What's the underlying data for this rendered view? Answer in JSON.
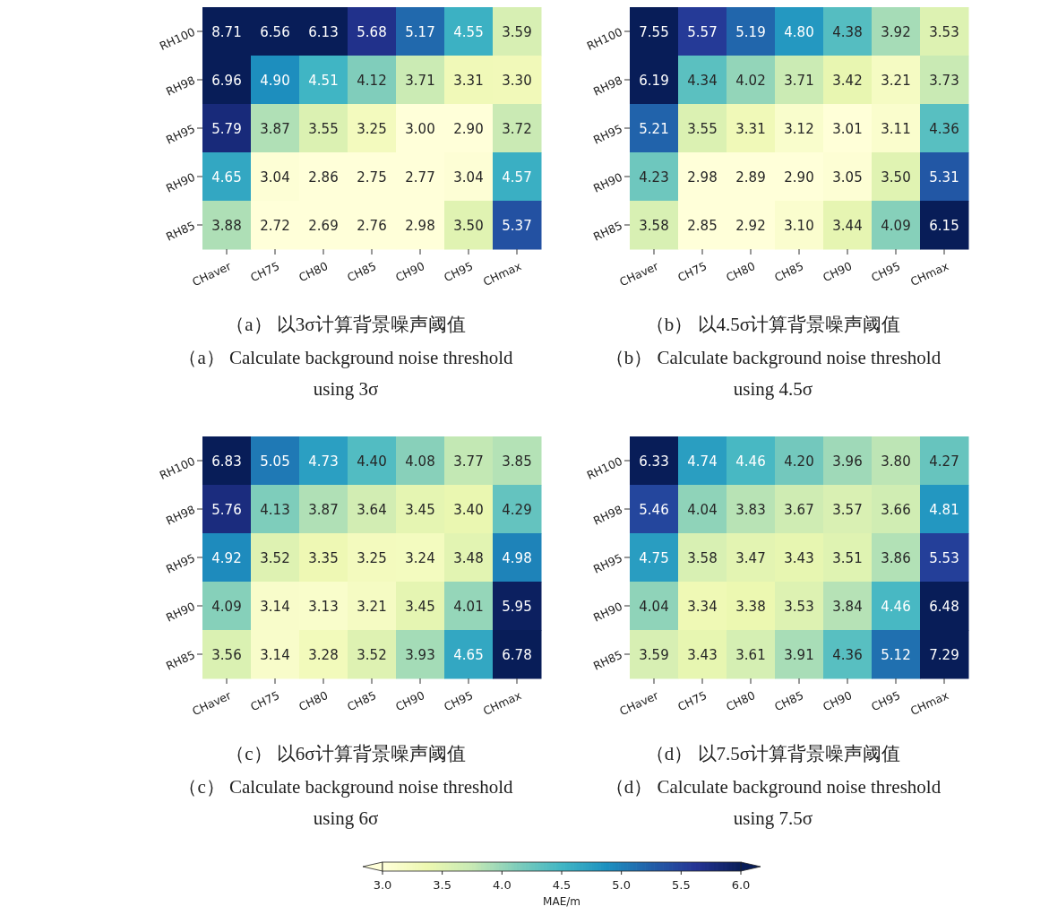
{
  "chart_data": [
    {
      "type": "heatmap",
      "title": "（a） 以3σ计算背景噪声阈值",
      "subtitle": "（a） Calculate background noise threshold using 3σ",
      "categories": [
        "CHaver",
        "CH75",
        "CH80",
        "CH85",
        "CH90",
        "CH95",
        "CHmax"
      ],
      "y_categories": [
        "RH100",
        "RH98",
        "RH95",
        "RH90",
        "RH85"
      ],
      "cells": [
        [
          8.71,
          6.56,
          6.13,
          5.68,
          5.17,
          4.55,
          3.59
        ],
        [
          6.96,
          4.9,
          4.51,
          4.12,
          3.71,
          3.31,
          3.3
        ],
        [
          5.79,
          3.87,
          3.55,
          3.25,
          3.0,
          2.9,
          3.72
        ],
        [
          4.65,
          3.04,
          2.86,
          2.75,
          2.77,
          3.04,
          4.57
        ],
        [
          3.88,
          2.72,
          2.69,
          2.76,
          2.98,
          3.5,
          5.37
        ]
      ],
      "cell_labels": [
        [
          "8.71",
          "6.56",
          "6.13",
          "5.68",
          "5.17",
          "4.55",
          "3.59"
        ],
        [
          "6.96",
          "4.90",
          "4.51",
          "4.12",
          "3.71",
          "3.31",
          "3.30"
        ],
        [
          "5.79",
          "3.87",
          "3.55",
          "3.25",
          "3.00",
          "2.90",
          "3.72"
        ],
        [
          "4.65",
          "3.04",
          "2.86",
          "2.75",
          "2.77",
          "3.04",
          "4.57"
        ],
        [
          "3.88",
          "2.72",
          "2.69",
          "2.76",
          "2.98",
          "3.50",
          "5.37"
        ]
      ]
    },
    {
      "type": "heatmap",
      "title": "（b） 以4.5σ计算背景噪声阈值",
      "subtitle": "（b） Calculate background noise threshold using 4.5σ",
      "categories": [
        "CHaver",
        "CH75",
        "CH80",
        "CH85",
        "CH90",
        "CH95",
        "CHmax"
      ],
      "y_categories": [
        "RH100",
        "RH98",
        "RH95",
        "RH90",
        "RH85"
      ],
      "cells": [
        [
          7.55,
          5.57,
          5.19,
          4.8,
          4.38,
          3.92,
          3.53
        ],
        [
          6.19,
          4.34,
          4.02,
          3.71,
          3.42,
          3.21,
          3.73
        ],
        [
          5.21,
          3.55,
          3.31,
          3.12,
          3.01,
          3.11,
          4.36
        ],
        [
          4.23,
          2.98,
          2.89,
          2.9,
          3.05,
          3.5,
          5.31
        ],
        [
          3.58,
          2.85,
          2.92,
          3.1,
          3.44,
          4.09,
          6.15
        ]
      ],
      "cell_labels": [
        [
          "7.55",
          "5.57",
          "5.19",
          "4.80",
          "4.38",
          "3.92",
          "3.53"
        ],
        [
          "6.19",
          "4.34",
          "4.02",
          "3.71",
          "3.42",
          "3.21",
          "3.73"
        ],
        [
          "5.21",
          "3.55",
          "3.31",
          "3.12",
          "3.01",
          "3.11",
          "4.36"
        ],
        [
          "4.23",
          "2.98",
          "2.89",
          "2.90",
          "3.05",
          "3.50",
          "5.31"
        ],
        [
          "3.58",
          "2.85",
          "2.92",
          "3.10",
          "3.44",
          "4.09",
          "6.15"
        ]
      ]
    },
    {
      "type": "heatmap",
      "title": "（c） 以6σ计算背景噪声阈值",
      "subtitle": "（c） Calculate background noise threshold using 6σ",
      "categories": [
        "CHaver",
        "CH75",
        "CH80",
        "CH85",
        "CH90",
        "CH95",
        "CHmax"
      ],
      "y_categories": [
        "RH100",
        "RH98",
        "RH95",
        "RH90",
        "RH85"
      ],
      "cells": [
        [
          6.83,
          5.05,
          4.73,
          4.4,
          4.08,
          3.77,
          3.85
        ],
        [
          5.76,
          4.13,
          3.87,
          3.64,
          3.45,
          3.4,
          4.29
        ],
        [
          4.92,
          3.52,
          3.35,
          3.25,
          3.24,
          3.48,
          4.98
        ],
        [
          4.09,
          3.14,
          3.13,
          3.21,
          3.45,
          4.01,
          5.95
        ],
        [
          3.56,
          3.14,
          3.28,
          3.52,
          3.93,
          4.65,
          6.78
        ]
      ],
      "cell_labels": [
        [
          "6.83",
          "5.05",
          "4.73",
          "4.40",
          "4.08",
          "3.77",
          "3.85"
        ],
        [
          "5.76",
          "4.13",
          "3.87",
          "3.64",
          "3.45",
          "3.40",
          "4.29"
        ],
        [
          "4.92",
          "3.52",
          "3.35",
          "3.25",
          "3.24",
          "3.48",
          "4.98"
        ],
        [
          "4.09",
          "3.14",
          "3.13",
          "3.21",
          "3.45",
          "4.01",
          "5.95"
        ],
        [
          "3.56",
          "3.14",
          "3.28",
          "3.52",
          "3.93",
          "4.65",
          "6.78"
        ]
      ]
    },
    {
      "type": "heatmap",
      "title": "（d） 以7.5σ计算背景噪声阈值",
      "subtitle": "（d） Calculate background noise threshold using 7.5σ",
      "categories": [
        "CHaver",
        "CH75",
        "CH80",
        "CH85",
        "CH90",
        "CH95",
        "CHmax"
      ],
      "y_categories": [
        "RH100",
        "RH98",
        "RH95",
        "RH90",
        "RH85"
      ],
      "cells": [
        [
          6.33,
          4.74,
          4.46,
          4.2,
          3.96,
          3.8,
          4.27
        ],
        [
          5.46,
          4.04,
          3.83,
          3.67,
          3.57,
          3.66,
          4.81
        ],
        [
          4.75,
          3.58,
          3.47,
          3.43,
          3.51,
          3.86,
          5.53
        ],
        [
          4.04,
          3.34,
          3.38,
          3.53,
          3.84,
          4.46,
          6.48
        ],
        [
          3.59,
          3.43,
          3.61,
          3.91,
          4.36,
          5.12,
          7.29
        ]
      ],
      "cell_labels": [
        [
          "6.33",
          "4.74",
          "4.46",
          "4.20",
          "3.96",
          "3.80",
          "4.27"
        ],
        [
          "5.46",
          "4.04",
          "3.83",
          "3.67",
          "3.57",
          "3.66",
          "4.81"
        ],
        [
          "4.75",
          "3.58",
          "3.47",
          "3.43",
          "3.51",
          "3.86",
          "5.53"
        ],
        [
          "4.04",
          "3.34",
          "3.38",
          "3.53",
          "3.84",
          "4.46",
          "6.48"
        ],
        [
          "3.59",
          "3.43",
          "3.61",
          "3.91",
          "4.36",
          "5.12",
          "7.29"
        ]
      ],
      "clim": [
        3,
        6
      ],
      "clabel": "MAE/m",
      "cticks": [
        {
          "value": 3.0,
          "label": "3.0"
        },
        {
          "value": 3.5,
          "label": "3.5"
        },
        {
          "value": 4.0,
          "label": "4.0"
        },
        {
          "value": 4.5,
          "label": "4.5"
        },
        {
          "value": 5.0,
          "label": "5.0"
        },
        {
          "value": 5.5,
          "label": "5.5"
        },
        {
          "value": 6.0,
          "label": "6.0"
        }
      ]
    }
  ]
}
